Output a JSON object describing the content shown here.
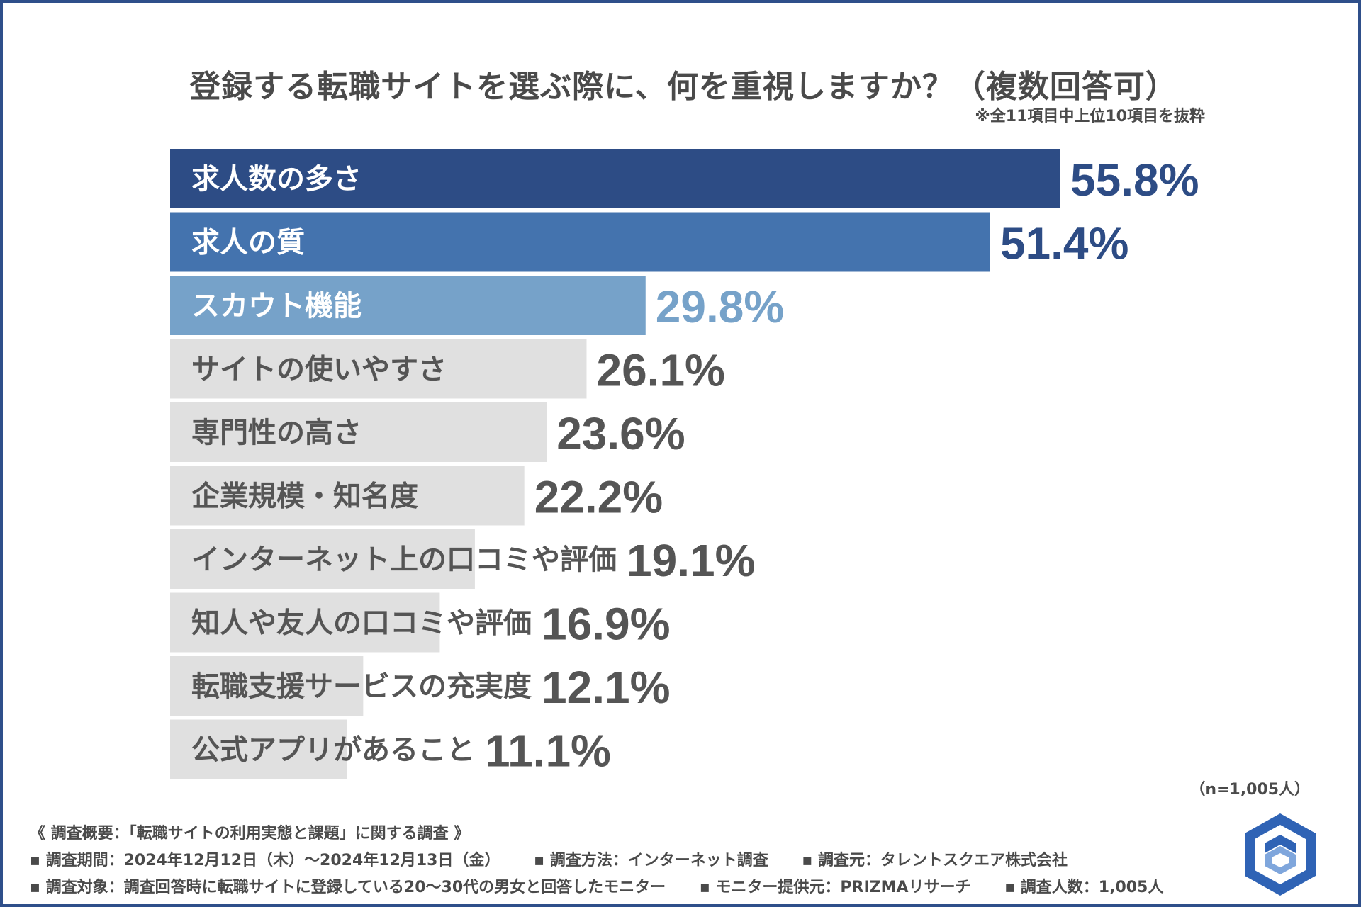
{
  "title": "登録する転職サイトを選ぶ際に、何を重視しますか？（複数回答可）",
  "subnote": "※全11項目中上位10項目を抜粋",
  "sample_size": "（n=1,005人）",
  "colors": {
    "top1": "#2d4c85",
    "top2": "#4473ae",
    "top3": "#76a2c9",
    "rest": "#e0e0e0",
    "rest_text": "#555555",
    "top_text": "#ffffff"
  },
  "chart_data": {
    "type": "bar",
    "orientation": "horizontal",
    "title": "登録する転職サイトを選ぶ際に、何を重視しますか？（複数回答可）",
    "unit": "%",
    "xlim": [
      0,
      100
    ],
    "categories": [
      "求人数の多さ",
      "求人の質",
      "スカウト機能",
      "サイトの使いやすさ",
      "専門性の高さ",
      "企業規模・知名度",
      "インターネット上の口コミや評価",
      "知人や友人の口コミや評価",
      "転職支援サービスの充実度",
      "公式アプリがあること"
    ],
    "values": [
      55.8,
      51.4,
      29.8,
      26.1,
      23.6,
      22.2,
      19.1,
      16.9,
      12.1,
      11.1
    ],
    "value_labels": [
      "55.8%",
      "51.4%",
      "29.8%",
      "26.1%",
      "23.6%",
      "22.2%",
      "19.1%",
      "16.9%",
      "12.1%",
      "11.1%"
    ]
  },
  "footer": {
    "heading": "《 調査概要：「転職サイトの利用実態と課題」に関する調査 》",
    "period": "▪ 調査期間：2024年12月12日（木）〜2024年12月13日（金）",
    "method": "▪ 調査方法：インターネット調査",
    "source": "▪ 調査元：タレントスクエア株式会社",
    "target": "▪ 調査対象：調査回答時に転職サイトに登録している20〜30代の男女と回答したモニター",
    "provider": "▪ モニター提供元：PRIZMAリサーチ",
    "count": "▪ 調査人数：1,005人"
  }
}
